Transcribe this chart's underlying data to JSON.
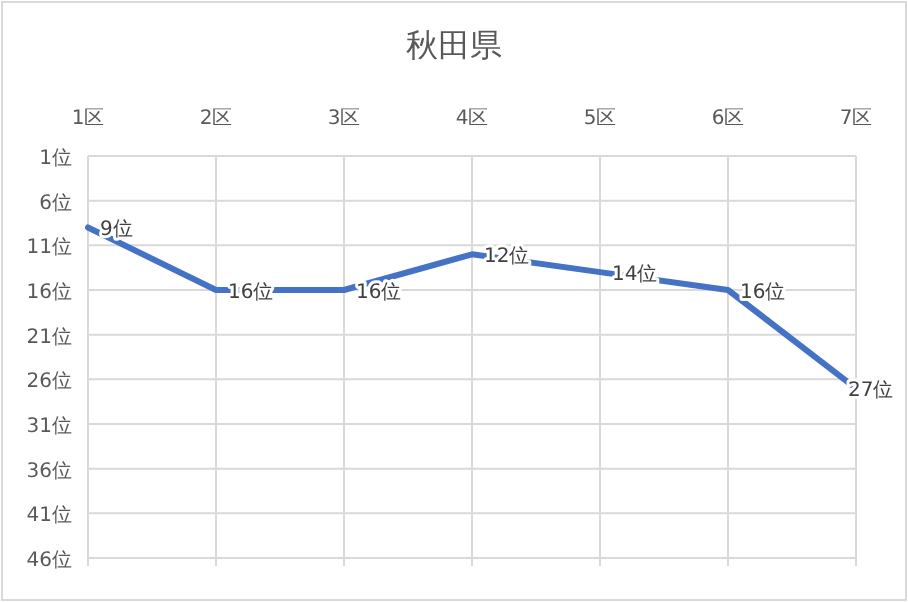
{
  "chart_data": {
    "type": "line",
    "title": "秋田県",
    "categories": [
      "1区",
      "2区",
      "3区",
      "4区",
      "5区",
      "6区",
      "7区"
    ],
    "series": [
      {
        "color": "#4472c4",
        "values": [
          9,
          16,
          16,
          12,
          14,
          16,
          27
        ],
        "value_labels": [
          "9位",
          "16位",
          "16位",
          "12位",
          "14位",
          "16位",
          "27位"
        ]
      }
    ],
    "ylim": [
      46,
      1
    ],
    "yticks": [
      {
        "value": 1,
        "label": "1位"
      },
      {
        "value": 6,
        "label": "6位"
      },
      {
        "value": 11,
        "label": "11位"
      },
      {
        "value": 16,
        "label": "16位"
      },
      {
        "value": 21,
        "label": "21位"
      },
      {
        "value": 26,
        "label": "26位"
      },
      {
        "value": 31,
        "label": "31位"
      },
      {
        "value": 36,
        "label": "36位"
      },
      {
        "value": 41,
        "label": "41位"
      },
      {
        "value": 46,
        "label": "46位"
      }
    ],
    "grid": true,
    "marker": "none",
    "line_style": "solid"
  }
}
